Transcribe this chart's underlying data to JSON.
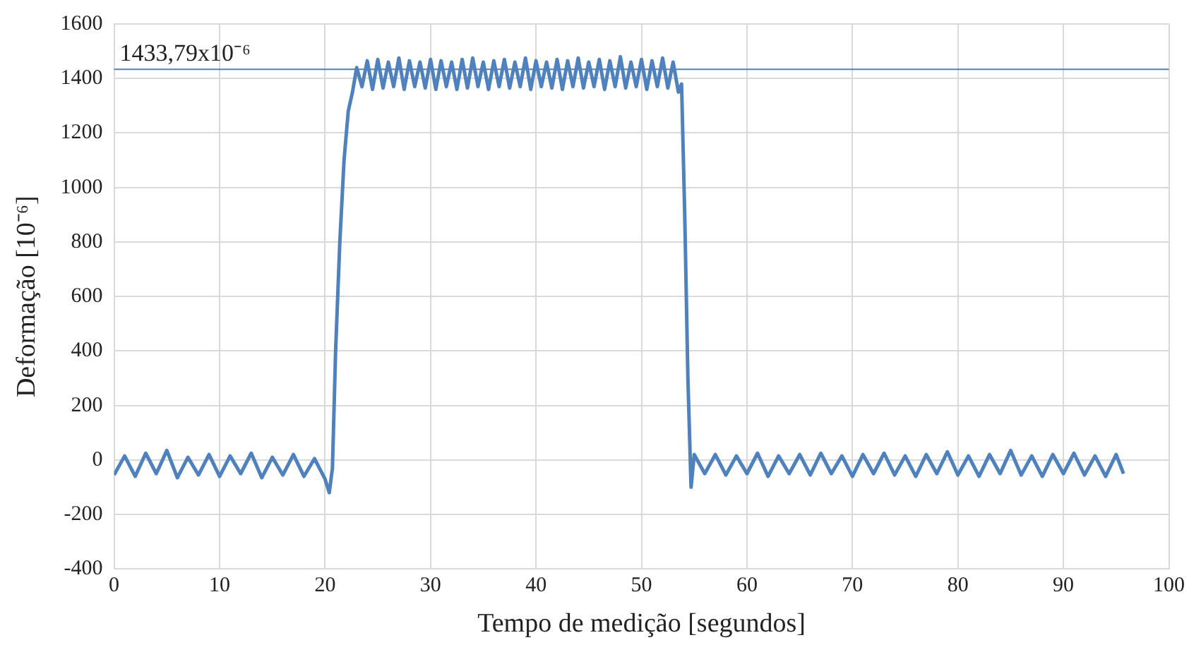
{
  "chart_data": {
    "type": "line",
    "xlabel": "Tempo de medição [segundos]",
    "ylabel": "Deformação [10⁻⁶]",
    "xlim": [
      0,
      100
    ],
    "xticks": [
      0,
      10,
      20,
      30,
      40,
      50,
      60,
      70,
      80,
      90,
      100
    ],
    "ylim": [
      -400,
      1600
    ],
    "yticks": [
      -400,
      -200,
      0,
      200,
      400,
      600,
      800,
      1000,
      1200,
      1400,
      1600
    ],
    "grid": true,
    "legend": false,
    "marker": "none",
    "line_style": "solid",
    "ref_lines": [
      {
        "axis": "y",
        "value": 1433.79,
        "label": "1433,79x10⁻⁶",
        "color": "#4f81bd"
      }
    ],
    "series": [
      {
        "color": "#4f81bd",
        "x": [
          0,
          1,
          2,
          3,
          4,
          5,
          6,
          7,
          8,
          9,
          10,
          11,
          12,
          13,
          14,
          15,
          16,
          17,
          18,
          19,
          20,
          20.4,
          20.7,
          21,
          21.4,
          21.8,
          22.2,
          22.6,
          23,
          23.5,
          24,
          24.5,
          25,
          25.5,
          26,
          26.5,
          27,
          27.5,
          28,
          28.5,
          29,
          29.5,
          30,
          30.5,
          31,
          31.5,
          32,
          32.5,
          33,
          33.5,
          34,
          34.5,
          35,
          35.5,
          36,
          36.5,
          37,
          37.5,
          38,
          38.5,
          39,
          39.5,
          40,
          40.5,
          41,
          41.5,
          42,
          42.5,
          43,
          43.5,
          44,
          44.5,
          45,
          45.5,
          46,
          46.5,
          47,
          47.5,
          48,
          48.5,
          49,
          49.5,
          50,
          50.5,
          51,
          51.5,
          52,
          52.5,
          53,
          53.5,
          53.8,
          54.1,
          54.4,
          54.7,
          55,
          56,
          57,
          58,
          59,
          60,
          61,
          62,
          63,
          64,
          65,
          66,
          67,
          68,
          69,
          70,
          71,
          72,
          73,
          74,
          75,
          76,
          77,
          78,
          79,
          80,
          81,
          82,
          83,
          84,
          85,
          86,
          87,
          88,
          89,
          90,
          91,
          92,
          93,
          94,
          95,
          95.7
        ],
        "values": [
          -55,
          15,
          -60,
          25,
          -50,
          35,
          -65,
          10,
          -55,
          20,
          -60,
          15,
          -50,
          25,
          -65,
          10,
          -55,
          20,
          -60,
          5,
          -70,
          -120,
          -30,
          400,
          800,
          1100,
          1280,
          1350,
          1440,
          1370,
          1465,
          1360,
          1470,
          1365,
          1460,
          1370,
          1475,
          1360,
          1465,
          1370,
          1460,
          1365,
          1470,
          1360,
          1465,
          1370,
          1460,
          1360,
          1470,
          1365,
          1475,
          1370,
          1460,
          1360,
          1465,
          1370,
          1470,
          1365,
          1460,
          1370,
          1475,
          1360,
          1465,
          1370,
          1460,
          1365,
          1470,
          1360,
          1465,
          1370,
          1475,
          1365,
          1460,
          1370,
          1470,
          1360,
          1465,
          1370,
          1480,
          1365,
          1460,
          1370,
          1470,
          1360,
          1465,
          1370,
          1475,
          1365,
          1460,
          1350,
          1380,
          900,
          300,
          -100,
          20,
          -50,
          20,
          -55,
          15,
          -50,
          25,
          -60,
          15,
          -50,
          20,
          -55,
          25,
          -50,
          15,
          -60,
          20,
          -50,
          25,
          -55,
          15,
          -60,
          20,
          -50,
          30,
          -55,
          15,
          -60,
          20,
          -50,
          35,
          -55,
          15,
          -60,
          20,
          -50,
          25,
          -55,
          15,
          -60,
          20,
          -50
        ]
      }
    ]
  }
}
